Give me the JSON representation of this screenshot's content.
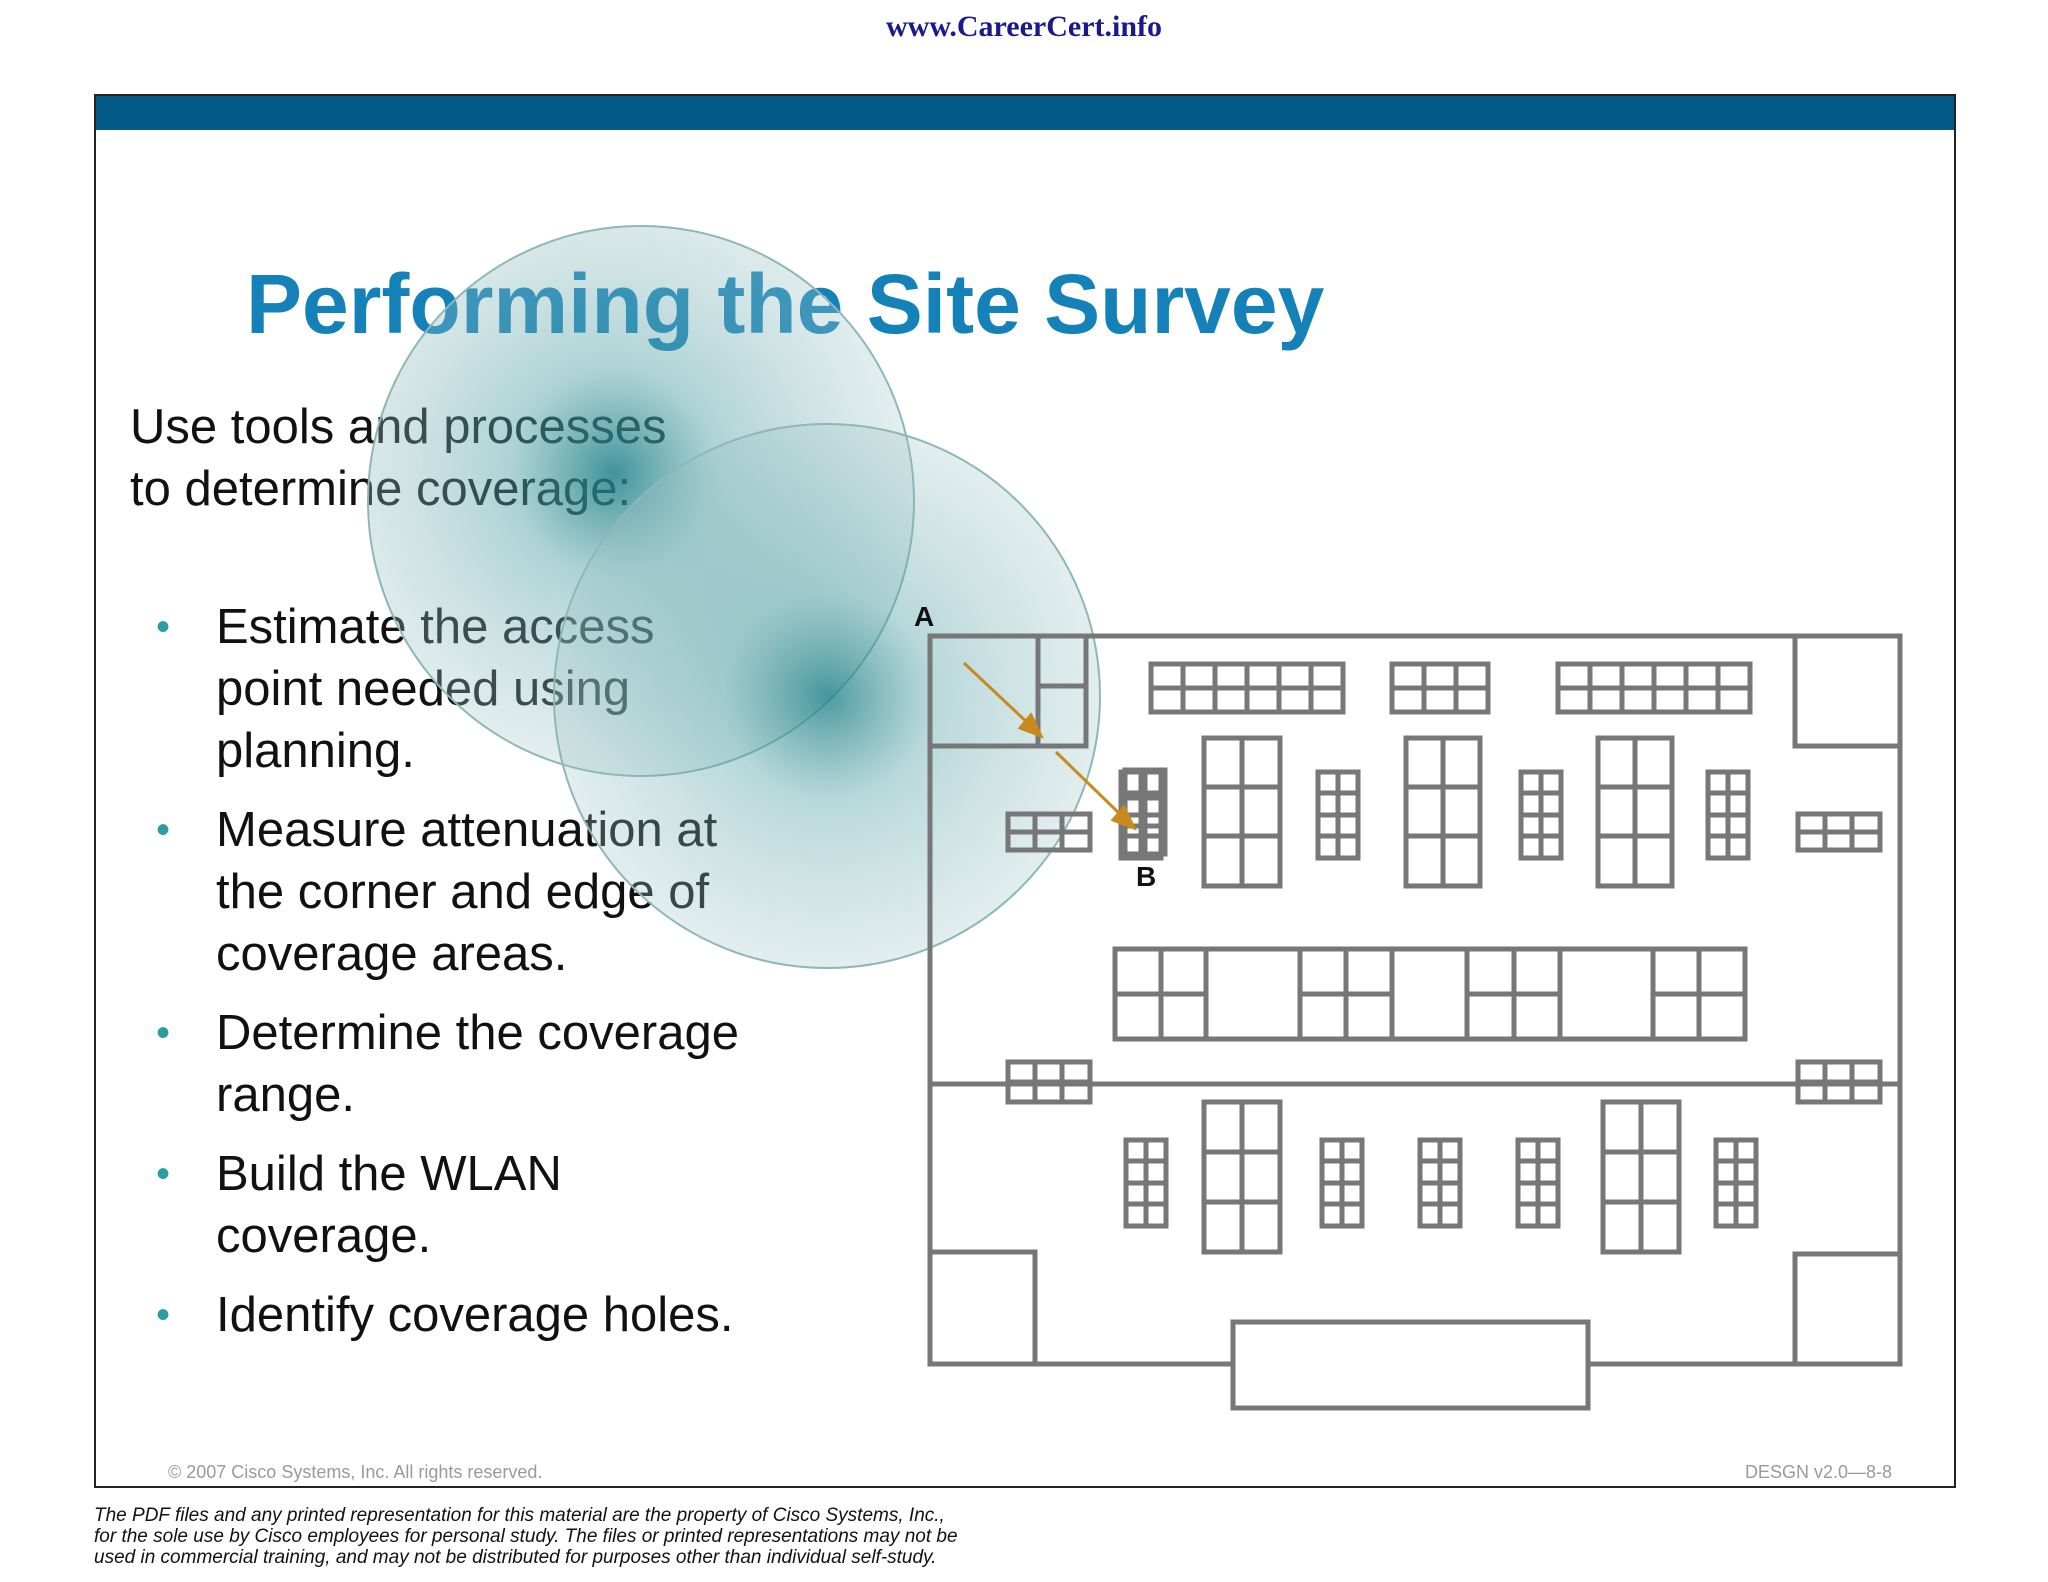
{
  "header": {
    "site_url": "www.CareerCert.info"
  },
  "slide": {
    "title": "Performing the Site Survey",
    "intro": "Use tools and processes to determine coverage:",
    "bullets": [
      "Estimate the access point needed using planning.",
      "Measure attenuation at the corner and edge of coverage areas.",
      "Determine the coverage range.",
      "Build the WLAN coverage.",
      "Identify coverage holes."
    ],
    "diagram": {
      "label_a": "A",
      "label_b": "B",
      "colors": {
        "coverage": "#1e8088",
        "walls": "#777777",
        "arrow": "#c88a1e"
      }
    },
    "copyright": "© 2007 Cisco Systems, Inc. All rights reserved.",
    "code": "DESGN v2.0—8-8"
  },
  "footer": {
    "disclaimer_lines": [
      "The PDF files and any printed representation for this material are the property of Cisco Systems, Inc.,",
      "for the sole use by Cisco employees for personal study. The files or printed representations may not be",
      "used in commercial training, and may not be distributed for purposes other than individual self-study."
    ]
  }
}
